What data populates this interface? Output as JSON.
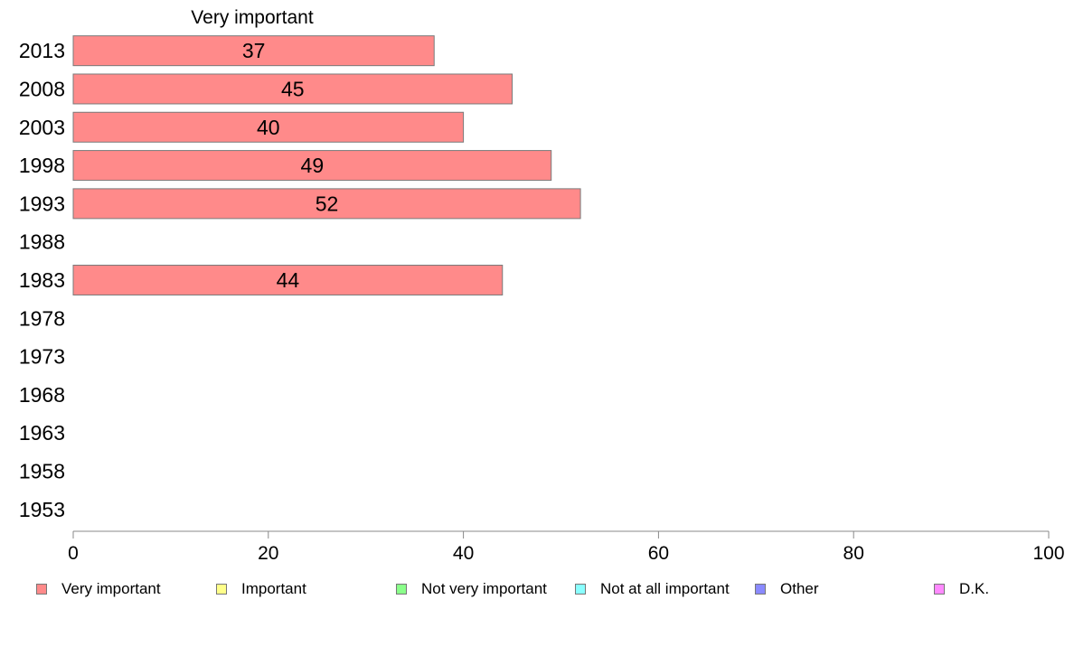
{
  "chart_data": {
    "type": "bar",
    "orientation": "horizontal",
    "title": "Very important",
    "categories": [
      "2013",
      "2008",
      "2003",
      "1998",
      "1993",
      "1988",
      "1983",
      "1978",
      "1973",
      "1968",
      "1963",
      "1958",
      "1953"
    ],
    "series": [
      {
        "name": "Very important",
        "values": [
          37,
          45,
          40,
          49,
          52,
          null,
          44,
          null,
          null,
          null,
          null,
          null,
          null
        ]
      }
    ],
    "data_labels": [
      "37",
      "45",
      "40",
      "49",
      "52",
      "",
      "44",
      "",
      "",
      "",
      "",
      "",
      ""
    ],
    "xlim": [
      0,
      100
    ],
    "xticks": [
      "0",
      "20",
      "40",
      "60",
      "80",
      "100"
    ],
    "xlabel": "",
    "ylabel": "",
    "grid": false,
    "legend_position": "bottom",
    "colors": {
      "bar": "#ff8a8a",
      "bar_edge": "#7a7a7a",
      "axis": "#888888"
    }
  },
  "legend": {
    "items": [
      {
        "label": "Very important",
        "color": "#ff8a8a"
      },
      {
        "label": "Important",
        "color": "#ffff8a"
      },
      {
        "label": "Not very important",
        "color": "#8aff8a"
      },
      {
        "label": "Not at all important",
        "color": "#8affff"
      },
      {
        "label": "Other",
        "color": "#8a8aff"
      },
      {
        "label": "D.K.",
        "color": "#ff8aff"
      }
    ]
  }
}
